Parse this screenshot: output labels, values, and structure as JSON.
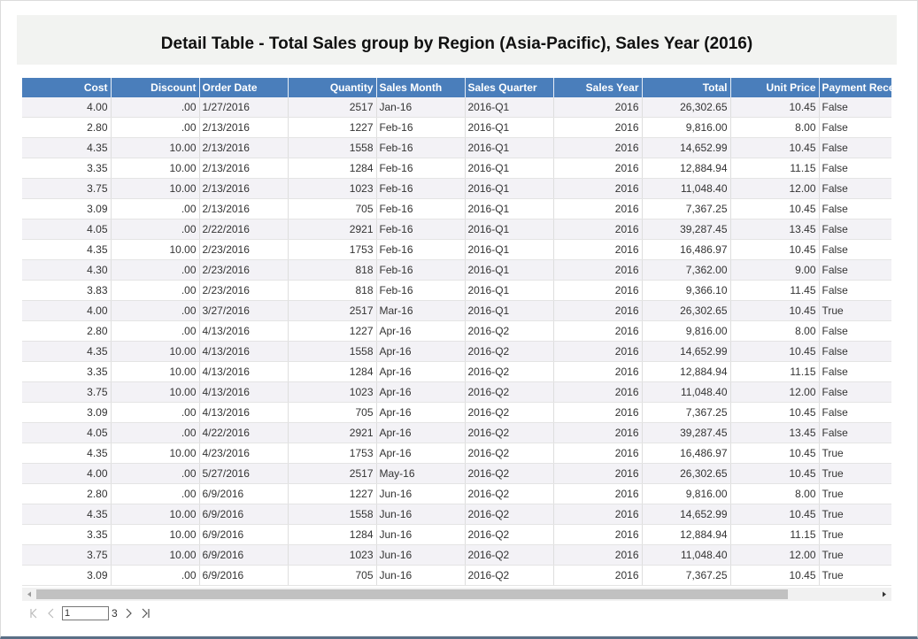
{
  "header": {
    "title": "Detail Table - Total Sales group by Region (Asia-Pacific), Sales Year (2016)"
  },
  "table": {
    "columns": [
      "Cost",
      "Discount",
      "Order Date",
      "Quantity",
      "Sales Month",
      "Sales Quarter",
      "Sales Year",
      "Total",
      "Unit Price",
      "Payment Rece"
    ],
    "rows": [
      [
        "4.00",
        ".00",
        "1/27/2016",
        "2517",
        "Jan-16",
        "2016-Q1",
        "2016",
        "26,302.65",
        "10.45",
        "False"
      ],
      [
        "2.80",
        ".00",
        "2/13/2016",
        "1227",
        "Feb-16",
        "2016-Q1",
        "2016",
        "9,816.00",
        "8.00",
        "False"
      ],
      [
        "4.35",
        "10.00",
        "2/13/2016",
        "1558",
        "Feb-16",
        "2016-Q1",
        "2016",
        "14,652.99",
        "10.45",
        "False"
      ],
      [
        "3.35",
        "10.00",
        "2/13/2016",
        "1284",
        "Feb-16",
        "2016-Q1",
        "2016",
        "12,884.94",
        "11.15",
        "False"
      ],
      [
        "3.75",
        "10.00",
        "2/13/2016",
        "1023",
        "Feb-16",
        "2016-Q1",
        "2016",
        "11,048.40",
        "12.00",
        "False"
      ],
      [
        "3.09",
        ".00",
        "2/13/2016",
        "705",
        "Feb-16",
        "2016-Q1",
        "2016",
        "7,367.25",
        "10.45",
        "False"
      ],
      [
        "4.05",
        ".00",
        "2/22/2016",
        "2921",
        "Feb-16",
        "2016-Q1",
        "2016",
        "39,287.45",
        "13.45",
        "False"
      ],
      [
        "4.35",
        "10.00",
        "2/23/2016",
        "1753",
        "Feb-16",
        "2016-Q1",
        "2016",
        "16,486.97",
        "10.45",
        "False"
      ],
      [
        "4.30",
        ".00",
        "2/23/2016",
        "818",
        "Feb-16",
        "2016-Q1",
        "2016",
        "7,362.00",
        "9.00",
        "False"
      ],
      [
        "3.83",
        ".00",
        "2/23/2016",
        "818",
        "Feb-16",
        "2016-Q1",
        "2016",
        "9,366.10",
        "11.45",
        "False"
      ],
      [
        "4.00",
        ".00",
        "3/27/2016",
        "2517",
        "Mar-16",
        "2016-Q1",
        "2016",
        "26,302.65",
        "10.45",
        "True"
      ],
      [
        "2.80",
        ".00",
        "4/13/2016",
        "1227",
        "Apr-16",
        "2016-Q2",
        "2016",
        "9,816.00",
        "8.00",
        "False"
      ],
      [
        "4.35",
        "10.00",
        "4/13/2016",
        "1558",
        "Apr-16",
        "2016-Q2",
        "2016",
        "14,652.99",
        "10.45",
        "False"
      ],
      [
        "3.35",
        "10.00",
        "4/13/2016",
        "1284",
        "Apr-16",
        "2016-Q2",
        "2016",
        "12,884.94",
        "11.15",
        "False"
      ],
      [
        "3.75",
        "10.00",
        "4/13/2016",
        "1023",
        "Apr-16",
        "2016-Q2",
        "2016",
        "11,048.40",
        "12.00",
        "False"
      ],
      [
        "3.09",
        ".00",
        "4/13/2016",
        "705",
        "Apr-16",
        "2016-Q2",
        "2016",
        "7,367.25",
        "10.45",
        "False"
      ],
      [
        "4.05",
        ".00",
        "4/22/2016",
        "2921",
        "Apr-16",
        "2016-Q2",
        "2016",
        "39,287.45",
        "13.45",
        "False"
      ],
      [
        "4.35",
        "10.00",
        "4/23/2016",
        "1753",
        "Apr-16",
        "2016-Q2",
        "2016",
        "16,486.97",
        "10.45",
        "True"
      ],
      [
        "4.00",
        ".00",
        "5/27/2016",
        "2517",
        "May-16",
        "2016-Q2",
        "2016",
        "26,302.65",
        "10.45",
        "True"
      ],
      [
        "2.80",
        ".00",
        "6/9/2016",
        "1227",
        "Jun-16",
        "2016-Q2",
        "2016",
        "9,816.00",
        "8.00",
        "True"
      ],
      [
        "4.35",
        "10.00",
        "6/9/2016",
        "1558",
        "Jun-16",
        "2016-Q2",
        "2016",
        "14,652.99",
        "10.45",
        "True"
      ],
      [
        "3.35",
        "10.00",
        "6/9/2016",
        "1284",
        "Jun-16",
        "2016-Q2",
        "2016",
        "12,884.94",
        "11.15",
        "True"
      ],
      [
        "3.75",
        "10.00",
        "6/9/2016",
        "1023",
        "Jun-16",
        "2016-Q2",
        "2016",
        "11,048.40",
        "12.00",
        "True"
      ],
      [
        "3.09",
        ".00",
        "6/9/2016",
        "705",
        "Jun-16",
        "2016-Q2",
        "2016",
        "7,367.25",
        "10.45",
        "True"
      ]
    ]
  },
  "pager": {
    "page": "1",
    "total": "3"
  }
}
